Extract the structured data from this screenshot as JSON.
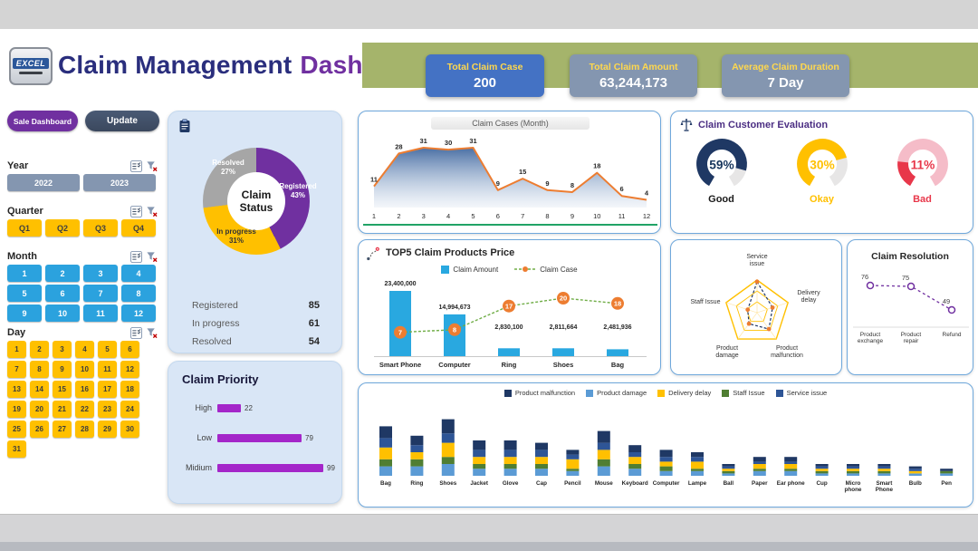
{
  "header": {
    "logo": "EXCEL",
    "title_primary": "Claim Management",
    "title_secondary": "Dashboard",
    "kpis": [
      {
        "label": "Total Claim Case",
        "value": "200"
      },
      {
        "label": "Total Claim Amount",
        "value": "63,244,173"
      },
      {
        "label": "Average Claim Duration",
        "value": "7 Day"
      }
    ]
  },
  "sidebar": {
    "nav_buttons": [
      {
        "label": "Sale Dashboard"
      },
      {
        "label": "Update"
      }
    ],
    "slicers": {
      "year": {
        "title": "Year",
        "items": [
          "2022",
          "2023"
        ]
      },
      "quarter": {
        "title": "Quarter",
        "items": [
          "Q1",
          "Q2",
          "Q3",
          "Q4"
        ]
      },
      "month": {
        "title": "Month",
        "items": [
          "1",
          "2",
          "3",
          "4",
          "5",
          "6",
          "7",
          "8",
          "9",
          "10",
          "11",
          "12"
        ]
      },
      "day": {
        "title": "Day",
        "items": [
          "1",
          "2",
          "3",
          "4",
          "5",
          "6",
          "7",
          "8",
          "9",
          "10",
          "11",
          "12",
          "13",
          "14",
          "15",
          "16",
          "17",
          "18",
          "19",
          "20",
          "21",
          "22",
          "23",
          "24",
          "25",
          "26",
          "27",
          "28",
          "29",
          "30",
          "31"
        ]
      }
    }
  },
  "chart_data": [
    {
      "id": "claim_status",
      "type": "pie",
      "title": "Claim Status",
      "segments": [
        {
          "label": "Registered",
          "pct_label": "43%",
          "value": 85,
          "color": "#7030A0",
          "text_color": "#ffffff"
        },
        {
          "label": "In progress",
          "pct_label": "31%",
          "value": 61,
          "color": "#FFC000",
          "text_color": "#333333"
        },
        {
          "label": "Resolved",
          "pct_label": "27%",
          "value": 54,
          "color": "#A6A6A6",
          "text_color": "#ffffff"
        }
      ],
      "stats": [
        [
          "Registered",
          "85"
        ],
        [
          "In progress",
          "61"
        ],
        [
          "Resolved",
          "54"
        ]
      ]
    },
    {
      "id": "claim_priority",
      "type": "bar",
      "title": "Claim Priority",
      "categories": [
        "High",
        "Low",
        "Midium"
      ],
      "values": [
        22,
        79,
        99
      ],
      "bar_color": "#A426C9",
      "xlim": [
        0,
        99
      ]
    },
    {
      "id": "claim_cases_month",
      "type": "area",
      "title": "Claim Cases (Month)",
      "x": [
        "1",
        "2",
        "3",
        "4",
        "5",
        "6",
        "7",
        "8",
        "9",
        "10",
        "11",
        "12"
      ],
      "values": [
        11,
        28,
        31,
        30,
        31,
        9,
        15,
        9,
        8,
        18,
        6,
        4
      ],
      "line_color": "#ED7D31",
      "fill_color": "#4472C4",
      "ylim": [
        0,
        31
      ]
    },
    {
      "id": "top5_claim_products_price",
      "type": "combo",
      "title": "TOP5  Claim Products Price",
      "legend": [
        {
          "label": "Claim Amount",
          "color": "#29A8E0"
        },
        {
          "label": "Claim Case",
          "color": "#70AD47",
          "marker_color": "#ED7D31"
        }
      ],
      "categories": [
        "Smart Phone",
        "Computer",
        "Ring",
        "Shoes",
        "Bag"
      ],
      "claim_amount": [
        23400000,
        14994673,
        2830100,
        2811664,
        2481936
      ],
      "claim_amount_labels": [
        "23,400,000",
        "14,994,673",
        "2,830,100",
        "2,811,664",
        "2,481,936"
      ],
      "claim_case": [
        7,
        8,
        17,
        20,
        18
      ]
    },
    {
      "id": "claim_customer_evaluation",
      "type": "gauge",
      "title": "Claim Customer Evaluation",
      "gauges": [
        {
          "value_label": "59%",
          "label": "Good",
          "color": "#1F3864",
          "track": "#E7E6E6",
          "fraction": 0.85,
          "value_color": "#17365D",
          "label_color": "#1a1a1a"
        },
        {
          "value_label": "30%",
          "label": "Okay",
          "color": "#FFC000",
          "track": "#E7E6E6",
          "fraction": 0.75,
          "value_color": "#FFC000",
          "label_color": "#FFC000"
        },
        {
          "value_label": "11%",
          "label": "Bad",
          "color": "#E8374A",
          "track": "#F5BCC8",
          "fraction": 0.22,
          "value_color": "#E8374A",
          "label_color": "#E8374A"
        }
      ]
    },
    {
      "id": "issue_radar",
      "type": "radar",
      "axes": [
        "Service issue",
        "Delivery delay",
        "Product malfunction",
        "Product damage",
        "Staff Issue"
      ],
      "values": [
        0.95,
        0.5,
        0.62,
        0.42,
        0.3
      ],
      "ring_color": "#FFC000",
      "line_color": "#203864",
      "marker_color": "#ED7D31"
    },
    {
      "id": "claim_resolution",
      "type": "line",
      "title": "Claim Resolution",
      "categories": [
        "Product exchange",
        "Product repair",
        "Refund"
      ],
      "values": [
        76,
        75,
        49
      ],
      "line_color": "#7030A0"
    },
    {
      "id": "claim_issues_by_product",
      "type": "stacked_bar",
      "legend": [
        {
          "label": "Product malfunction",
          "color": "#1F3864"
        },
        {
          "label": "Product damage",
          "color": "#5B9BD5"
        },
        {
          "label": "Delivery delay",
          "color": "#FFC000"
        },
        {
          "label": "Staff Issue",
          "color": "#507E32"
        },
        {
          "label": "Service issue",
          "color": "#2E5596"
        }
      ],
      "categories": [
        "Bag",
        "Ring",
        "Shoes",
        "Jacket",
        "Glove",
        "Cap",
        "Pencil",
        "Mouse",
        "Keyboard",
        "Computer",
        "Lampe",
        "Ball",
        "Paper",
        "Ear phone",
        "Cup",
        "Micro phone",
        "Smart Phone",
        "Bulb",
        "Pen"
      ],
      "series": [
        {
          "name": "Product malfunction",
          "values": [
            5,
            4,
            6,
            4,
            4,
            3,
            2,
            5,
            3,
            3,
            2,
            1,
            2,
            2,
            1,
            1,
            1,
            1,
            1
          ]
        },
        {
          "name": "Product damage",
          "values": [
            4,
            4,
            5,
            3,
            3,
            3,
            2,
            4,
            3,
            2,
            2,
            1,
            2,
            2,
            1,
            1,
            1,
            1,
            1
          ]
        },
        {
          "name": "Delivery delay",
          "values": [
            5,
            3,
            6,
            3,
            3,
            3,
            4,
            4,
            3,
            2,
            3,
            1,
            2,
            2,
            1,
            1,
            1,
            1,
            0
          ]
        },
        {
          "name": "Staff Issue",
          "values": [
            3,
            3,
            3,
            2,
            2,
            2,
            1,
            3,
            2,
            2,
            1,
            1,
            1,
            1,
            1,
            1,
            1,
            0,
            1
          ]
        },
        {
          "name": "Service issue",
          "values": [
            4,
            3,
            4,
            3,
            3,
            3,
            2,
            3,
            2,
            2,
            2,
            1,
            1,
            1,
            1,
            1,
            1,
            1,
            0
          ]
        }
      ]
    }
  ]
}
